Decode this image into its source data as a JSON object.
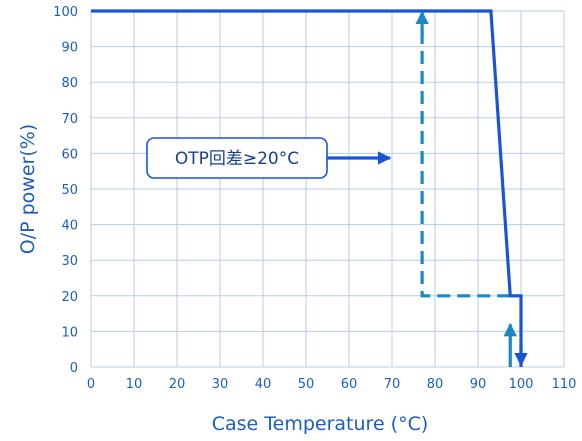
{
  "chart_data": {
    "type": "line",
    "title": "",
    "xlabel": "Case Temperature (°C)",
    "ylabel": "O/P power(%)",
    "xlim": [
      0,
      110
    ],
    "ylim": [
      0,
      100
    ],
    "x_ticks": [
      0,
      10,
      20,
      30,
      40,
      50,
      60,
      70,
      80,
      90,
      100,
      110
    ],
    "y_ticks": [
      0,
      10,
      20,
      30,
      40,
      50,
      60,
      70,
      80,
      90,
      100
    ],
    "grid": true,
    "series": [
      {
        "name": "",
        "style": "solid",
        "color": "#1a54d6",
        "points": [
          [
            0,
            100
          ],
          [
            93,
            100
          ],
          [
            97.5,
            20
          ],
          [
            100,
            20
          ],
          [
            100,
            0
          ]
        ]
      },
      {
        "name": "",
        "style": "dashed",
        "color": "#1a88c2",
        "points": [
          [
            97.5,
            20
          ],
          [
            77,
            20
          ],
          [
            77,
            100
          ]
        ]
      }
    ],
    "annotations": [
      {
        "text": "OTP回差≥20°C"
      }
    ]
  }
}
